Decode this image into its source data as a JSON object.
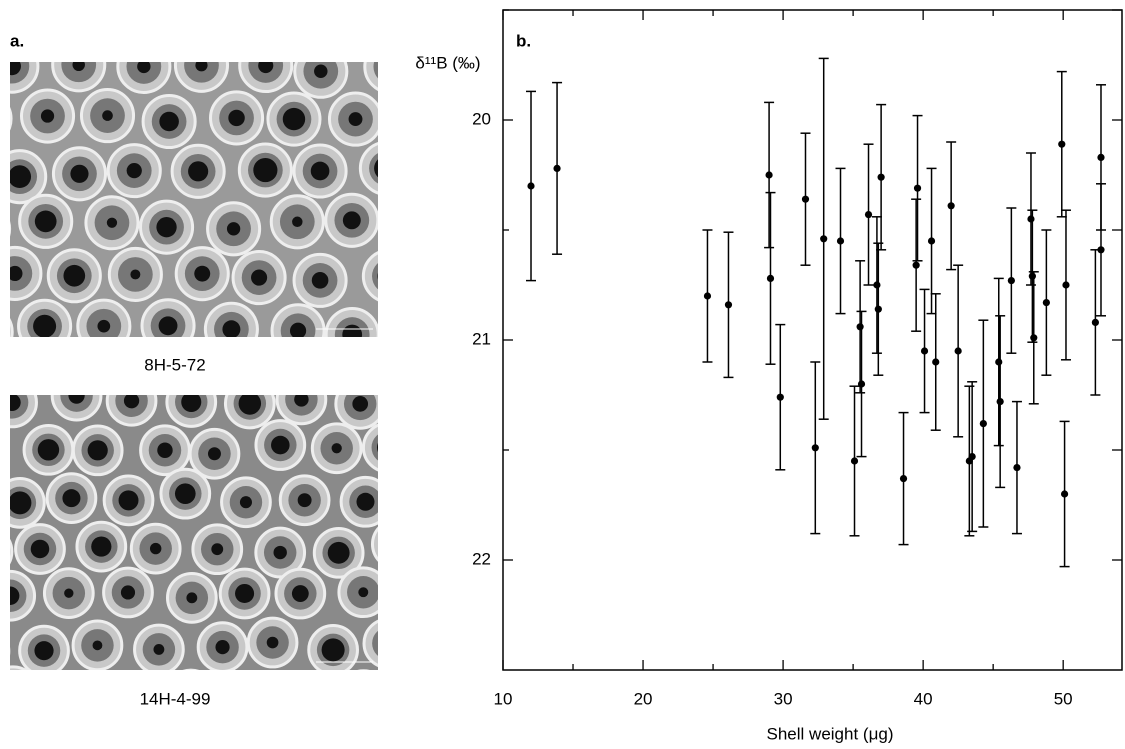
{
  "panel_a": {
    "label": "a.",
    "images": [
      {
        "caption": "8H-5-72"
      },
      {
        "caption": "14H-4-99"
      }
    ]
  },
  "chart_data": {
    "type": "errorbar-scatter",
    "panel_label": "b.",
    "y_label": "δ¹¹B (‰)",
    "x_label": "Shell weight (μg)",
    "xlim": [
      10,
      54.2
    ],
    "xticks": [
      10,
      20,
      30,
      40,
      50
    ],
    "x_minor_ticks": [
      15,
      25,
      35,
      45
    ],
    "ylim": [
      19.5,
      22.5
    ],
    "y_inverted": true,
    "yticks": [
      20,
      21,
      22
    ],
    "y_minor_ticks": [
      19.5,
      20.5,
      21.5
    ],
    "series": [
      {
        "color": "#000000",
        "x": [
          12,
          13.86,
          24.6,
          26.1,
          29,
          29.1,
          29.8,
          31.6,
          32.3,
          32.9,
          34.1,
          35.1,
          35.5,
          35.6,
          36.1,
          36.7,
          36.8,
          37,
          38.6,
          39.6,
          39.5,
          40.1,
          40.6,
          40.9,
          42,
          42.5,
          43.3,
          43.5,
          44.3,
          45.4,
          45.5,
          46.3,
          46.7,
          47.7,
          47.8,
          47.9,
          48.8,
          49.9,
          50.2,
          50.1,
          52.3,
          52.7,
          52.7
        ],
        "values": [
          20.3,
          20.22,
          20.8,
          20.84,
          20.25,
          20.72,
          21.26,
          20.36,
          21.49,
          20.54,
          20.55,
          21.55,
          20.94,
          21.2,
          20.43,
          20.75,
          20.86,
          20.26,
          21.63,
          20.31,
          20.66,
          21.05,
          20.55,
          21.1,
          20.39,
          21.05,
          21.55,
          21.53,
          21.38,
          21.1,
          21.28,
          20.73,
          21.58,
          20.45,
          20.71,
          20.99,
          20.83,
          20.11,
          20.75,
          21.7,
          20.92,
          20.17,
          20.59
        ],
        "errors": [
          0.43,
          0.39,
          0.3,
          0.33,
          0.33,
          0.39,
          0.33,
          0.3,
          0.39,
          0.82,
          0.33,
          0.34,
          0.3,
          0.33,
          0.32,
          0.31,
          0.3,
          0.33,
          0.3,
          0.33,
          0.3,
          0.28,
          0.33,
          0.31,
          0.29,
          0.39,
          0.34,
          0.34,
          0.47,
          0.38,
          0.39,
          0.33,
          0.3,
          0.3,
          0.3,
          0.3,
          0.33,
          0.33,
          0.34,
          0.33,
          0.33,
          0.33,
          0.3
        ]
      }
    ]
  }
}
